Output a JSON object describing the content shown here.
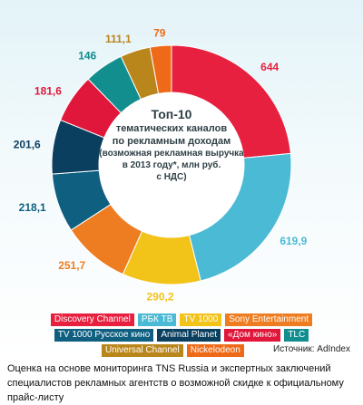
{
  "chart_data": {
    "type": "pie",
    "title_lines": [
      "Топ-10",
      "тематических каналов",
      "по рекламным доходам",
      "(возможная рекламная выручка",
      "в 2013 году*, млн руб.",
      "с НДС)"
    ],
    "slices": [
      {
        "name": "Discovery Channel",
        "value": 644,
        "label": "644",
        "color": "#e8203f"
      },
      {
        "name": "РБК ТВ",
        "value": 619.9,
        "label": "619,9",
        "color": "#4bbad4"
      },
      {
        "name": "TV 1000",
        "value": 290.2,
        "label": "290,2",
        "color": "#f2c318"
      },
      {
        "name": "Sony Entertainment",
        "value": 251.7,
        "label": "251,7",
        "color": "#ee7d21"
      },
      {
        "name": "TV 1000 Русское кино",
        "value": 218.1,
        "label": "218,1",
        "color": "#0f5f80"
      },
      {
        "name": "Animal Planet",
        "value": 201.6,
        "label": "201,6",
        "color": "#0b3f60"
      },
      {
        "name": "«Дом кино»",
        "value": 181.6,
        "label": "181,6",
        "color": "#e0173b"
      },
      {
        "name": "TLC",
        "value": 146,
        "label": "146",
        "color": "#138e8e"
      },
      {
        "name": "Universal Channel",
        "value": 111.1,
        "label": "111,1",
        "color": "#b9861c"
      },
      {
        "name": "Nickelodeon",
        "value": 79,
        "label": "79",
        "color": "#ef6a18"
      }
    ]
  },
  "legend_rows": [
    [
      "Discovery Channel",
      "РБК ТВ",
      "TV 1000",
      "Sony Entertainment"
    ],
    [
      "TV 1000 Русское кино",
      "Animal Planet",
      "«Дом кино»",
      "TLC"
    ],
    [
      "Universal Channel",
      "Nickelodeon"
    ]
  ],
  "source": "Источник: AdIndex",
  "caption": "Оценка на основе мониторинга TNS Russia и экспертных заключений специалистов рекламных агентств о возможной скидке к официальному прайс-листу"
}
